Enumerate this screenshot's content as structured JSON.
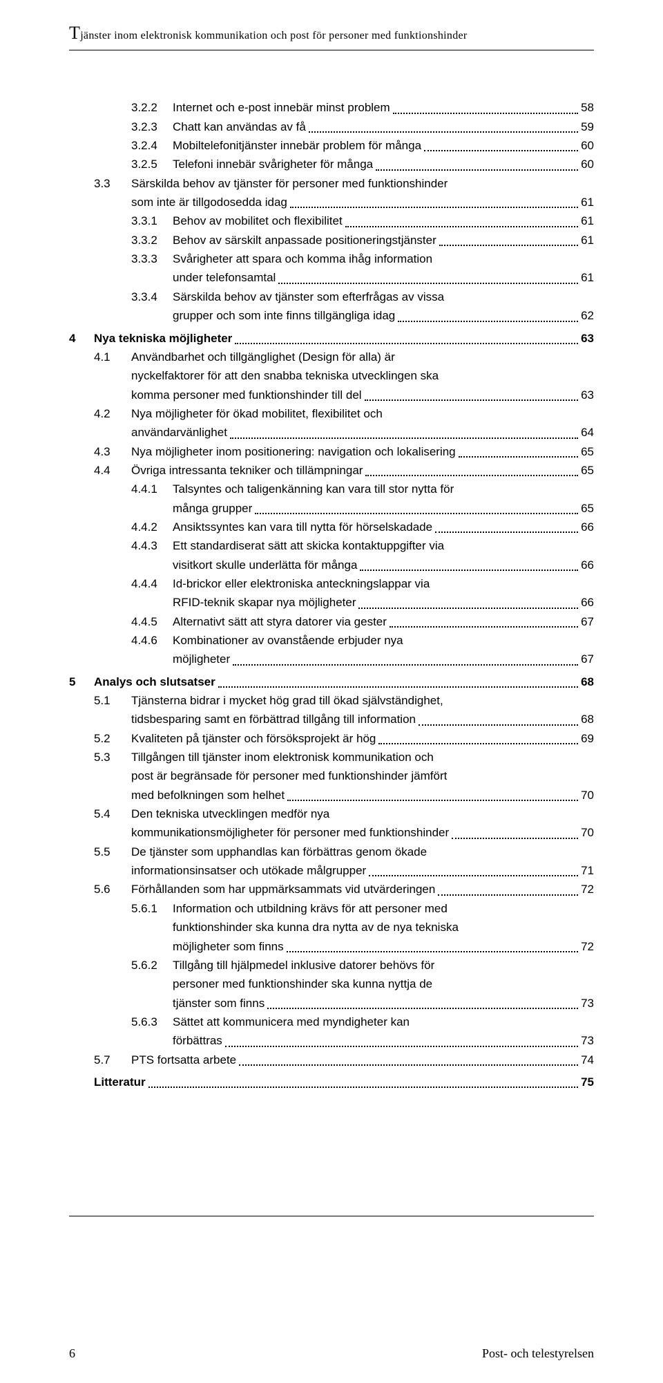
{
  "header": {
    "title_rest": "jänster inom elektronisk kommunikation och post för personer med funktionshinder"
  },
  "toc": [
    {
      "lvl": 3,
      "num": "3.2.2",
      "text": "Internet och e-post innebär minst problem",
      "page": "58"
    },
    {
      "lvl": 3,
      "num": "3.2.3",
      "text": "Chatt kan användas av få",
      "page": "59"
    },
    {
      "lvl": 3,
      "num": "3.2.4",
      "text": "Mobiltelefonitjänster innebär problem för många",
      "page": "60"
    },
    {
      "lvl": 3,
      "num": "3.2.5",
      "text": "Telefoni innebär svårigheter för många",
      "page": "60"
    },
    {
      "lvl": 2,
      "num": "3.3",
      "text": "Särskilda behov av tjänster för personer med funktionshinder",
      "cont": "som inte är tillgodosedda idag",
      "page": "61"
    },
    {
      "lvl": 3,
      "num": "3.3.1",
      "text": "Behov av mobilitet och flexibilitet",
      "page": "61"
    },
    {
      "lvl": 3,
      "num": "3.3.2",
      "text": "Behov av särskilt anpassade positioneringstjänster",
      "page": "61"
    },
    {
      "lvl": 3,
      "num": "3.3.3",
      "text": "Svårigheter att spara och komma ihåg information",
      "cont": "under telefonsamtal",
      "page": "61"
    },
    {
      "lvl": 3,
      "num": "3.3.4",
      "text": "Särskilda behov av tjänster som efterfrågas av vissa",
      "cont": "grupper och som inte finns tillgängliga idag",
      "page": "62"
    },
    {
      "lvl": 1,
      "num": "4",
      "text": "Nya tekniska möjligheter",
      "page": "63"
    },
    {
      "lvl": 2,
      "num": "4.1",
      "text": "Användbarhet och tillgänglighet (Design för alla) är",
      "cont": "nyckelfaktorer för att den snabba tekniska utvecklingen ska",
      "cont2": "komma personer med funktionshinder till del",
      "page": "63"
    },
    {
      "lvl": 2,
      "num": "4.2",
      "text": "Nya möjligheter för ökad mobilitet, flexibilitet och",
      "cont": "användarvänlighet",
      "page": "64"
    },
    {
      "lvl": 2,
      "num": "4.3",
      "text": "Nya möjligheter inom positionering: navigation och lokalisering",
      "page": "65"
    },
    {
      "lvl": 2,
      "num": "4.4",
      "text": "Övriga intressanta tekniker och tillämpningar",
      "page": "65"
    },
    {
      "lvl": 3,
      "num": "4.4.1",
      "text": "Talsyntes och taligenkänning kan vara till stor nytta för",
      "cont": "många grupper",
      "page": "65"
    },
    {
      "lvl": 3,
      "num": "4.4.2",
      "text": "Ansiktssyntes kan vara till nytta för hörselskadade",
      "page": "66"
    },
    {
      "lvl": 3,
      "num": "4.4.3",
      "text": "Ett standardiserat sätt att skicka kontaktuppgifter via",
      "cont": "visitkort skulle underlätta för många",
      "page": "66"
    },
    {
      "lvl": 3,
      "num": "4.4.4",
      "text": "Id-brickor eller elektroniska anteckningslappar via",
      "cont": "RFID-teknik skapar nya möjligheter",
      "page": "66"
    },
    {
      "lvl": 3,
      "num": "4.4.5",
      "text": "Alternativt sätt att styra datorer via gester",
      "page": "67"
    },
    {
      "lvl": 3,
      "num": "4.4.6",
      "text": "Kombinationer av ovanstående erbjuder nya",
      "cont": "möjligheter",
      "page": "67"
    },
    {
      "lvl": 1,
      "num": "5",
      "text": "Analys och slutsatser",
      "page": "68"
    },
    {
      "lvl": 2,
      "num": "5.1",
      "text": "Tjänsterna bidrar i mycket hög grad till ökad självständighet,",
      "cont": "tidsbesparing samt en förbättrad tillgång till information",
      "page": "68"
    },
    {
      "lvl": 2,
      "num": "5.2",
      "text": "Kvaliteten på tjänster och försöksprojekt är hög",
      "page": "69"
    },
    {
      "lvl": 2,
      "num": "5.3",
      "text": "Tillgången till tjänster inom elektronisk kommunikation och",
      "cont": "post är begränsade för personer med funktionshinder jämfört",
      "cont2": "med befolkningen som helhet",
      "page": "70"
    },
    {
      "lvl": 2,
      "num": "5.4",
      "text": "Den tekniska utvecklingen medför nya",
      "cont": "kommunikationsmöjligheter för personer med funktionshinder",
      "page": "70"
    },
    {
      "lvl": 2,
      "num": "5.5",
      "text": "De tjänster som upphandlas kan förbättras genom ökade",
      "cont": "informationsinsatser och utökade målgrupper",
      "page": "71"
    },
    {
      "lvl": 2,
      "num": "5.6",
      "text": "Förhållanden som har uppmärksammats vid utvärderingen",
      "page": "72"
    },
    {
      "lvl": 3,
      "num": "5.6.1",
      "text": "Information och utbildning krävs för att personer med",
      "cont": "funktionshinder ska kunna dra nytta av de nya tekniska",
      "cont2": "möjligheter som finns",
      "page": "72"
    },
    {
      "lvl": 3,
      "num": "5.6.2",
      "text": "Tillgång till hjälpmedel inklusive datorer behövs för",
      "cont": "personer med funktionshinder ska kunna nyttja de",
      "cont2": "tjänster som finns",
      "page": "73"
    },
    {
      "lvl": 3,
      "num": "5.6.3",
      "text": "Sättet att kommunicera med myndigheter kan",
      "cont": "förbättras",
      "page": "73"
    },
    {
      "lvl": 2,
      "num": "5.7",
      "text": "PTS fortsatta arbete",
      "page": "74"
    },
    {
      "lvl": 1,
      "num": "",
      "text": "Litteratur",
      "page": "75",
      "nonum": true
    }
  ],
  "footer": {
    "page_number": "6",
    "org": "Post- och telestyrelsen"
  }
}
